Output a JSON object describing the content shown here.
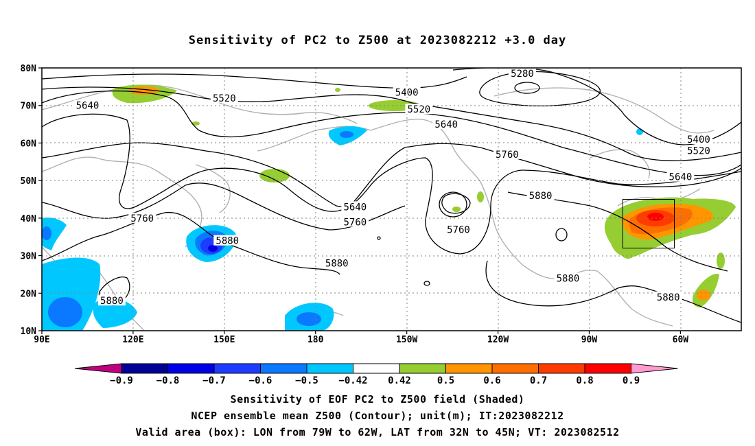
{
  "title": "Sensitivity of PC2 to Z500 at 2023082212 +3.0 day",
  "axes": {
    "lat_labels": [
      "80N",
      "70N",
      "60N",
      "50N",
      "40N",
      "30N",
      "20N",
      "10N"
    ],
    "lon_labels": [
      "90E",
      "120E",
      "150E",
      "180",
      "150W",
      "120W",
      "90W",
      "60W"
    ]
  },
  "contours": {
    "labels": [
      {
        "text": "5280",
        "lon": -112,
        "lat": 78.5
      },
      {
        "text": "5400",
        "lon": -150,
        "lat": 73.5
      },
      {
        "text": "5400",
        "lon": -54,
        "lat": 61
      },
      {
        "text": "5520",
        "lon": 150,
        "lat": 72
      },
      {
        "text": "5520",
        "lon": -146,
        "lat": 69
      },
      {
        "text": "5520",
        "lon": -54,
        "lat": 58
      },
      {
        "text": "5640",
        "lon": 105,
        "lat": 70
      },
      {
        "text": "5640",
        "lon": -137,
        "lat": 65
      },
      {
        "text": "5640",
        "lon": -60,
        "lat": 51
      },
      {
        "text": "5640",
        "lon": -167,
        "lat": 43
      },
      {
        "text": "5760",
        "lon": -117,
        "lat": 57
      },
      {
        "text": "5760",
        "lon": 123,
        "lat": 40
      },
      {
        "text": "5760",
        "lon": -167,
        "lat": 39
      },
      {
        "text": "5760",
        "lon": -133,
        "lat": 37
      },
      {
        "text": "5880",
        "lon": -106,
        "lat": 46
      },
      {
        "text": "5880",
        "lon": 151,
        "lat": 34
      },
      {
        "text": "5880",
        "lon": -173,
        "lat": 28
      },
      {
        "text": "5880",
        "lon": 113,
        "lat": 18
      },
      {
        "text": "5880",
        "lon": -97,
        "lat": 24
      },
      {
        "text": "5880",
        "lon": -64,
        "lat": 19
      }
    ]
  },
  "valid_box": {
    "lon_west": -79,
    "lon_east": -62,
    "lat_south": 32,
    "lat_north": 45
  },
  "colorbar": {
    "labels": [
      "−0.9",
      "−0.8",
      "−0.7",
      "−0.6",
      "−0.5",
      "−0.42",
      "0.42",
      "0.5",
      "0.6",
      "0.7",
      "0.8",
      "0.9"
    ],
    "colors": [
      "#000096",
      "#0000e6",
      "#1e3cff",
      "#0a78ff",
      "#00c8ff",
      "#ffffff",
      "#96cd32",
      "#ff9600",
      "#ff6e00",
      "#ff3c00",
      "#ff0000"
    ],
    "left_triangle_color": "#c0007f",
    "right_triangle_color": "#ff9bd0"
  },
  "captions": {
    "line1": "Sensitivity of EOF PC2 to Z500 field (Shaded)",
    "line2": "NCEP ensemble mean Z500 (Contour); unit(m); IT:2023082212",
    "line3": "Valid area (box): LON from 79W to 62W, LAT from 32N to 45N; VT: 2023082512"
  }
}
